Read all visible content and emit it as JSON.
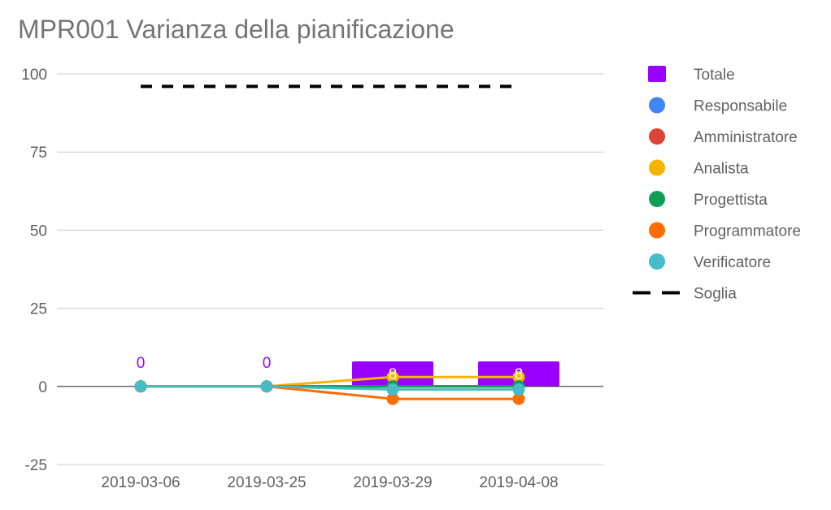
{
  "chart_data": {
    "type": "bar",
    "title": "MPR001 Varianza della pianificazione",
    "xlabel": "",
    "ylabel": "",
    "categories": [
      "2019-03-06",
      "2019-03-25",
      "2019-03-29",
      "2019-04-08"
    ],
    "ylim": [
      -25,
      100
    ],
    "yticks": [
      -25,
      0,
      25,
      50,
      75,
      100
    ],
    "grid": true,
    "legend_position": "right",
    "series": [
      {
        "name": "Totale",
        "kind": "bar",
        "color": "#9900ff",
        "marker": "square",
        "values": [
          0,
          0,
          8,
          8
        ],
        "data_labels": [
          "0",
          "0",
          "8",
          "8"
        ]
      },
      {
        "name": "Responsabile",
        "kind": "line",
        "color": "#4285f4",
        "marker": "circle",
        "values": [
          0,
          0,
          0,
          0
        ]
      },
      {
        "name": "Amministratore",
        "kind": "line",
        "color": "#db4437",
        "marker": "circle",
        "values": [
          0,
          0,
          0,
          0
        ]
      },
      {
        "name": "Analista",
        "kind": "line",
        "color": "#f4b400",
        "marker": "circle",
        "values": [
          0,
          0,
          3,
          3
        ]
      },
      {
        "name": "Progettista",
        "kind": "line",
        "color": "#0f9d58",
        "marker": "circle",
        "values": [
          0,
          0,
          0,
          0
        ]
      },
      {
        "name": "Programmatore",
        "kind": "line",
        "color": "#ff6d01",
        "marker": "circle",
        "values": [
          0,
          0,
          -4,
          -4
        ]
      },
      {
        "name": "Verificatore",
        "kind": "line",
        "color": "#46bdc6",
        "marker": "circle",
        "values": [
          0,
          0,
          -1,
          -1
        ]
      },
      {
        "name": "Soglia",
        "kind": "threshold",
        "color": "#000000",
        "marker": "dash",
        "value": 96
      }
    ]
  }
}
